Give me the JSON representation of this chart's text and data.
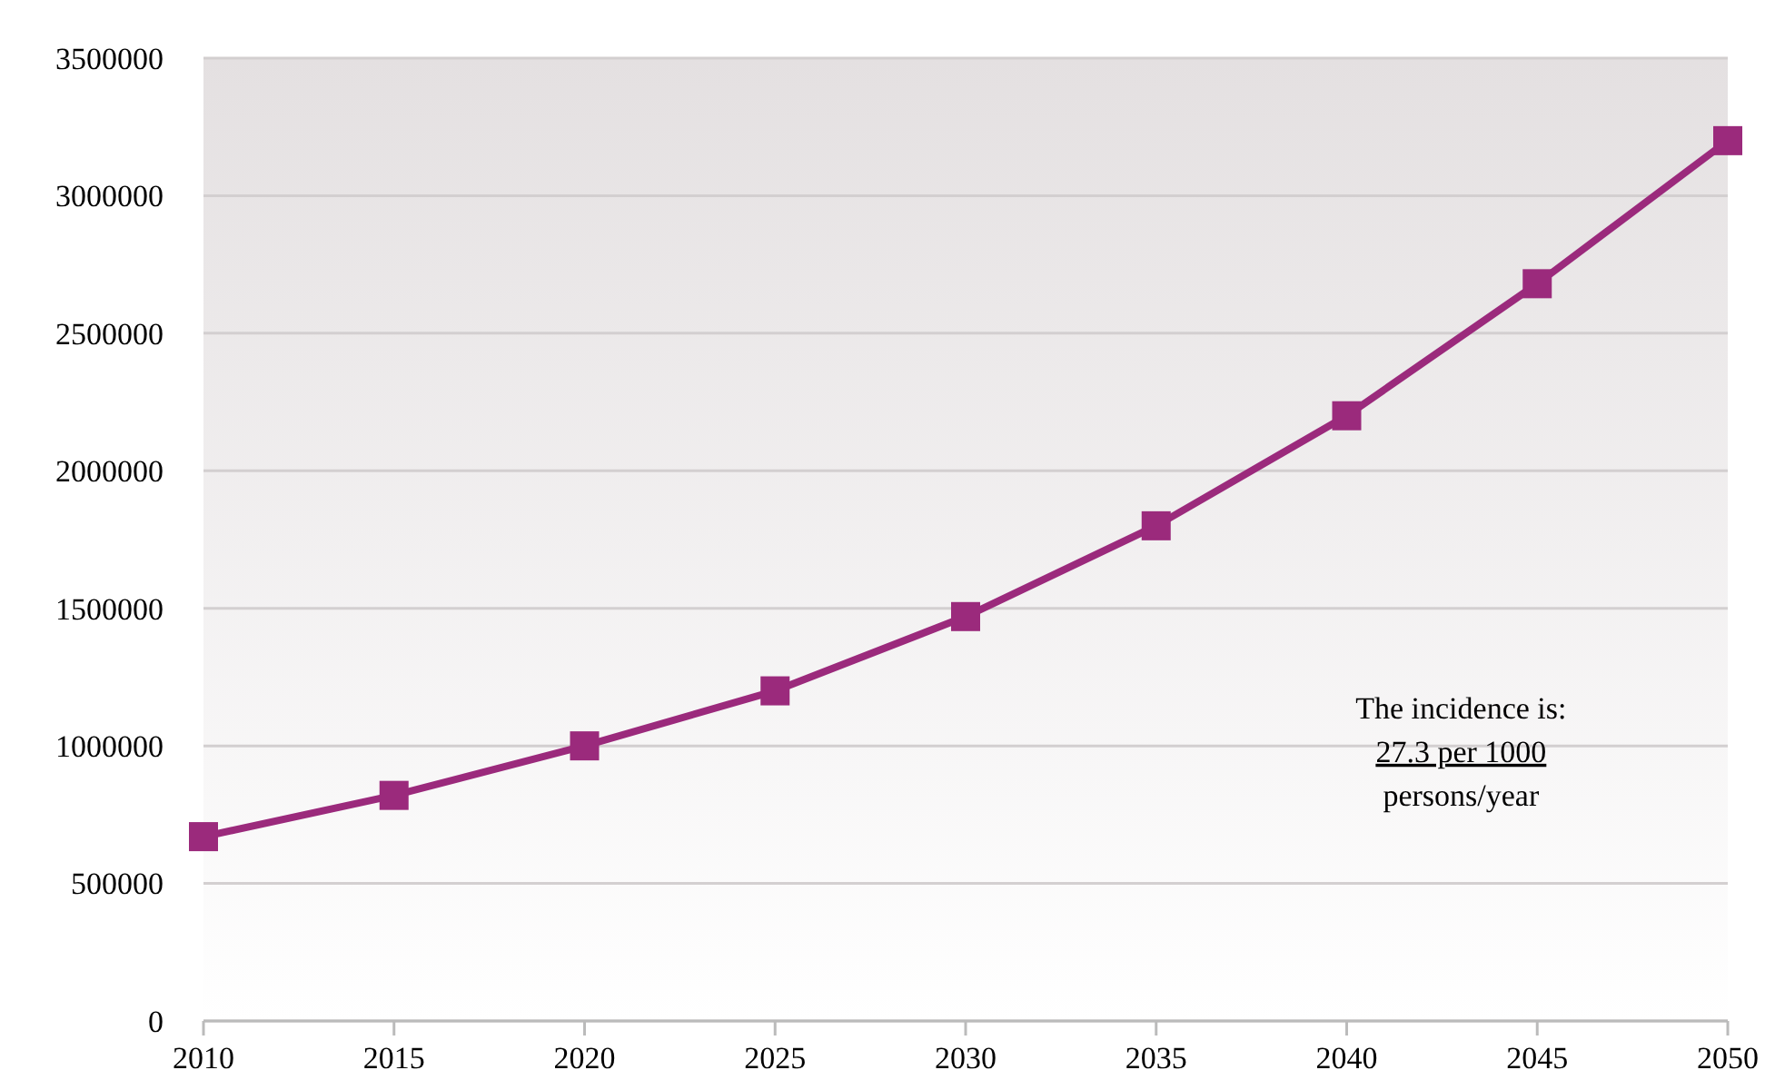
{
  "chart_data": {
    "type": "line",
    "x": [
      2010,
      2015,
      2020,
      2025,
      2030,
      2035,
      2040,
      2045,
      2050
    ],
    "series": [
      {
        "color": "#9b2a7c",
        "values": [
          670000,
          820000,
          1000000,
          1200000,
          1470000,
          1800000,
          2200000,
          2680000,
          3200000
        ]
      }
    ],
    "xlim": [
      2010,
      2050
    ],
    "xticks": [
      2010,
      2015,
      2020,
      2025,
      2030,
      2035,
      2040,
      2045,
      2050
    ],
    "ylim": [
      0,
      3500000
    ],
    "yticks": [
      0,
      500000,
      1000000,
      1500000,
      2000000,
      2500000,
      3000000,
      3500000
    ],
    "grid": "y",
    "marker": "square",
    "line_style": "solid",
    "annotations": [
      "The incidence is:",
      "27.3 per 1000",
      "persons/year"
    ]
  }
}
